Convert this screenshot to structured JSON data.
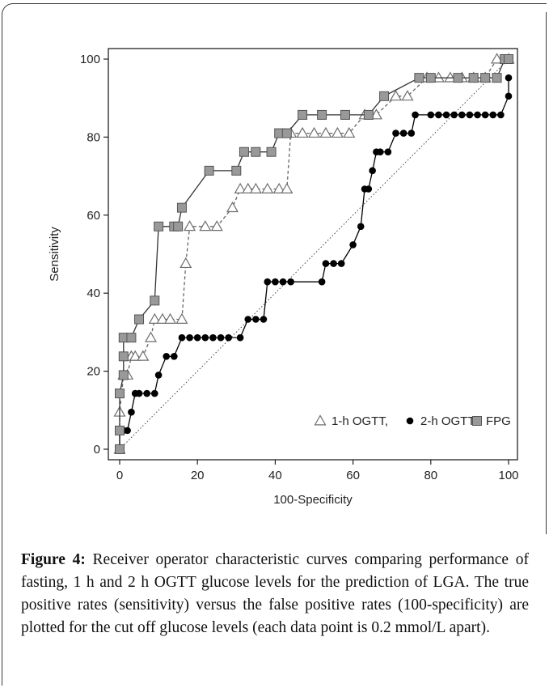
{
  "chart_data": {
    "type": "line",
    "xlabel": "100-Specificity",
    "ylabel": "Sensitivity",
    "xlim": [
      0,
      100
    ],
    "ylim": [
      0,
      100
    ],
    "x_ticks": [
      "0",
      "20",
      "40",
      "60",
      "80",
      "100"
    ],
    "y_ticks": [
      "0",
      "20",
      "40",
      "60",
      "80",
      "100"
    ],
    "legend": {
      "placement": "bottom-right",
      "entries": [
        "1-h OGTT,",
        "2-h OGTT",
        "FPG"
      ]
    },
    "reference_line": {
      "type": "diagonal",
      "from": [
        0,
        0
      ],
      "to": [
        100,
        100
      ],
      "style": "dotted"
    },
    "series": [
      {
        "name": "1-h OGTT",
        "marker": "open-triangle",
        "line": "dashed",
        "color": "#777777",
        "x": [
          0,
          0,
          1,
          2,
          3,
          4,
          6,
          8,
          9,
          11,
          13,
          16,
          17,
          18,
          22,
          25,
          29,
          31,
          33,
          35,
          38,
          41,
          43,
          44,
          47,
          50,
          53,
          56,
          59,
          63,
          66,
          71,
          74,
          79,
          82,
          85,
          88,
          91,
          94,
          97,
          100
        ],
        "y": [
          0,
          9.5,
          19,
          19,
          23.8,
          23.8,
          23.8,
          28.6,
          33.3,
          33.3,
          33.3,
          33.3,
          47.6,
          57.1,
          57.1,
          57.1,
          61.9,
          66.7,
          66.7,
          66.7,
          66.7,
          66.7,
          66.7,
          81,
          81,
          81,
          81,
          81,
          81,
          85.7,
          85.7,
          90.5,
          90.5,
          95.2,
          95.2,
          95.2,
          95.2,
          95.2,
          95.2,
          100,
          100
        ]
      },
      {
        "name": "2-h OGTT",
        "marker": "filled-circle",
        "line": "solid",
        "color": "#000000",
        "x": [
          0,
          0,
          1,
          2,
          3,
          4,
          5,
          7,
          9,
          10,
          12,
          14,
          16,
          18,
          20,
          22,
          24,
          26,
          28,
          31,
          33,
          35,
          37,
          38,
          40,
          42,
          44,
          52,
          53,
          55,
          57,
          60,
          62,
          63,
          64,
          65,
          66,
          67,
          69,
          71,
          73,
          75,
          76,
          80,
          82,
          84,
          86,
          88,
          90,
          92,
          94,
          96,
          98,
          100,
          100
        ],
        "y": [
          0,
          4.8,
          4.8,
          4.8,
          9.5,
          14.3,
          14.3,
          14.3,
          14.3,
          19,
          23.8,
          23.8,
          28.6,
          28.6,
          28.6,
          28.6,
          28.6,
          28.6,
          28.6,
          28.6,
          33.3,
          33.3,
          33.3,
          42.9,
          42.9,
          42.9,
          42.9,
          42.9,
          47.6,
          47.6,
          47.6,
          52.4,
          57.1,
          66.7,
          66.7,
          71.4,
          76.2,
          76.2,
          76.2,
          81,
          81,
          81,
          85.7,
          85.7,
          85.7,
          85.7,
          85.7,
          85.7,
          85.7,
          85.7,
          85.7,
          85.7,
          85.7,
          90.5,
          95.2
        ]
      },
      {
        "name": "FPG",
        "marker": "filled-square",
        "line": "solid",
        "color": "#777777",
        "x": [
          0,
          0,
          0,
          1,
          1,
          1,
          3,
          5,
          9,
          10,
          14,
          15,
          16,
          23,
          30,
          32,
          35,
          39,
          41,
          43,
          47,
          52,
          58,
          64,
          68,
          77,
          80,
          87,
          91,
          94,
          97,
          99,
          100
        ],
        "y": [
          0,
          4.8,
          14.3,
          19,
          23.8,
          28.6,
          28.6,
          33.3,
          38.1,
          57.1,
          57.1,
          57.1,
          61.9,
          71.4,
          71.4,
          76.2,
          76.2,
          76.2,
          81,
          81,
          85.7,
          85.7,
          85.7,
          85.7,
          90.5,
          95.2,
          95.2,
          95.2,
          95.2,
          95.2,
          95.2,
          100,
          100
        ]
      }
    ]
  },
  "caption": {
    "label": "Figure 4:",
    "text": "Receiver operator characteristic curves comparing performance of fasting, 1 h and 2 h OGTT glucose levels for the prediction of LGA. The true positive rates (sensitivity) versus the false positive rates (100-specificity) are plotted for the cut off glucose levels (each data point is 0.2 mmol/L apart)."
  }
}
